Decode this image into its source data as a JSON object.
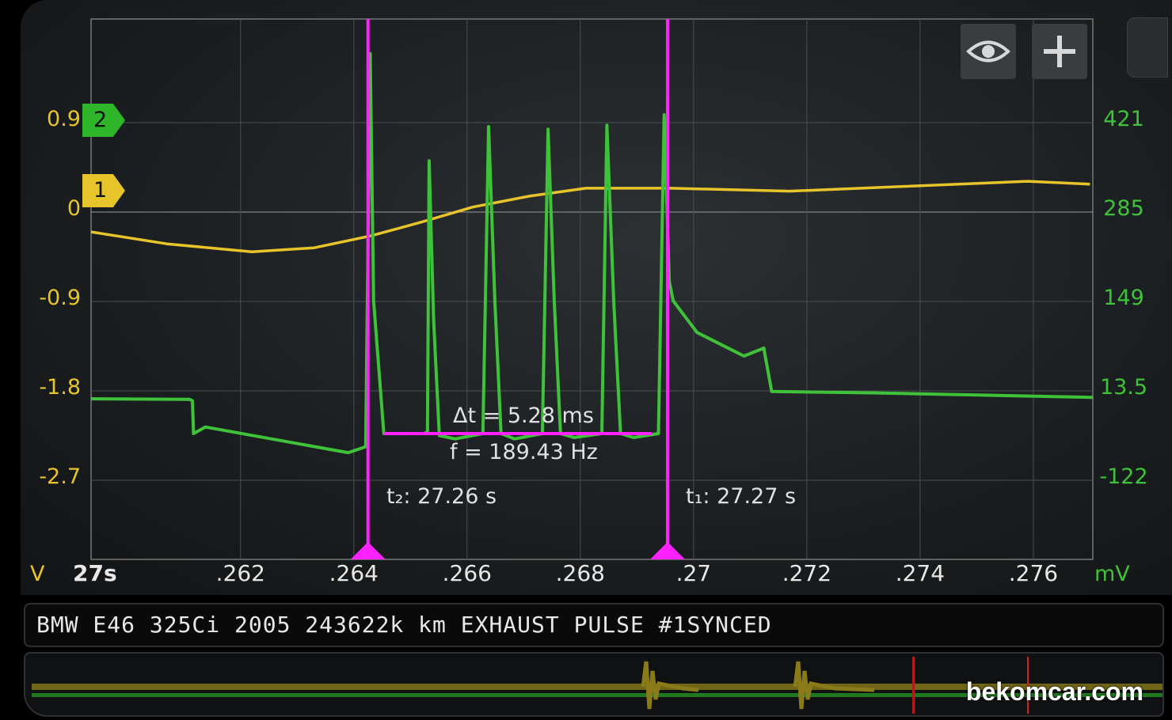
{
  "colors": {
    "channel1": "#e6c42a",
    "channel2": "#3fc23a",
    "cursor": "#ff22ff",
    "grid": "#4a4e52"
  },
  "toolbar": {
    "eye_icon": "eye-icon",
    "add_icon": "plus-icon"
  },
  "channels": [
    {
      "id": "1",
      "unit": "V"
    },
    {
      "id": "2",
      "unit": "mV"
    }
  ],
  "measurements": {
    "delta_t": "Δt = 5.28 ms",
    "frequency": "f = 189.43 Hz",
    "t2": "t₂: 27.26 s",
    "t1": "t₁: 27.27 s"
  },
  "title": "BMW E46 325Ci 2005 243622k km EXHAUST PULSE #1SYNCED",
  "watermark": "bekomcar.com",
  "chart_data": {
    "type": "line",
    "xlabel": "27s",
    "xlim": [
      27.25936,
      27.27705
    ],
    "xticks": [
      {
        "v": 27.262,
        "label": ".262"
      },
      {
        "v": 27.264,
        "label": ".264"
      },
      {
        "v": 27.266,
        "label": ".266"
      },
      {
        "v": 27.268,
        "label": ".268"
      },
      {
        "v": 27.27,
        "label": ".27"
      },
      {
        "v": 27.272,
        "label": ".272"
      },
      {
        "v": 27.274,
        "label": ".274"
      },
      {
        "v": 27.276,
        "label": ".276"
      }
    ],
    "y_left": {
      "unit": "V",
      "ticks": [
        "0.9",
        "0",
        "-0.9",
        "-1.8",
        "-2.7"
      ],
      "values": [
        0.9,
        0,
        -0.9,
        -1.8,
        -2.7
      ]
    },
    "y_right": {
      "unit": "mV",
      "ticks": [
        "421",
        "285",
        "149",
        "13.5",
        "-122"
      ],
      "values": [
        421,
        285,
        149,
        13.5,
        -122
      ]
    },
    "grid": true,
    "cursors": [
      {
        "name": "t2",
        "t": 27.26425
      },
      {
        "name": "t1",
        "t": 27.26954
      }
    ],
    "series": [
      {
        "channel": "1",
        "axis": "left",
        "color": "#e6c42a",
        "points": [
          [
            27.25936,
            -0.2
          ],
          [
            27.2607,
            -0.32
          ],
          [
            27.2622,
            -0.4
          ],
          [
            27.2633,
            -0.36
          ],
          [
            27.2643,
            -0.24
          ],
          [
            27.2652,
            -0.1
          ],
          [
            27.2661,
            0.05
          ],
          [
            27.2671,
            0.16
          ],
          [
            27.2681,
            0.24
          ],
          [
            27.2696,
            0.24
          ],
          [
            27.2717,
            0.21
          ],
          [
            27.2738,
            0.26
          ],
          [
            27.2759,
            0.31
          ],
          [
            27.277,
            0.28
          ]
        ]
      },
      {
        "channel": "2",
        "axis": "right",
        "color": "#3fc23a",
        "points": [
          [
            27.25936,
            1
          ],
          [
            27.2611,
            0
          ],
          [
            27.26115,
            -2
          ],
          [
            27.26117,
            -52
          ],
          [
            27.26138,
            -42
          ],
          [
            27.2639,
            -81
          ],
          [
            27.26421,
            -72
          ],
          [
            27.26429,
            526
          ],
          [
            27.26435,
            150
          ],
          [
            27.26453,
            -52
          ],
          [
            27.26523,
            -52
          ],
          [
            27.2653,
            -50
          ],
          [
            27.26533,
            363
          ],
          [
            27.26541,
            120
          ],
          [
            27.26551,
            -55
          ],
          [
            27.26579,
            -60
          ],
          [
            27.26628,
            -52
          ],
          [
            27.26638,
            415
          ],
          [
            27.26649,
            150
          ],
          [
            27.2666,
            -52
          ],
          [
            27.26684,
            -60
          ],
          [
            27.26733,
            -52
          ],
          [
            27.26743,
            411
          ],
          [
            27.26754,
            150
          ],
          [
            27.26765,
            -52
          ],
          [
            27.26789,
            -58
          ],
          [
            27.26838,
            -52
          ],
          [
            27.26847,
            417
          ],
          [
            27.26859,
            150
          ],
          [
            27.26871,
            -52
          ],
          [
            27.26894,
            -58
          ],
          [
            27.26938,
            -52
          ],
          [
            27.26948,
            433
          ],
          [
            27.26957,
            180
          ],
          [
            27.26964,
            150
          ],
          [
            27.27006,
            102
          ],
          [
            27.27089,
            66
          ],
          [
            27.27124,
            78
          ],
          [
            27.27138,
            12
          ],
          [
            27.27313,
            10
          ],
          [
            27.27705,
            3
          ]
        ]
      }
    ]
  }
}
